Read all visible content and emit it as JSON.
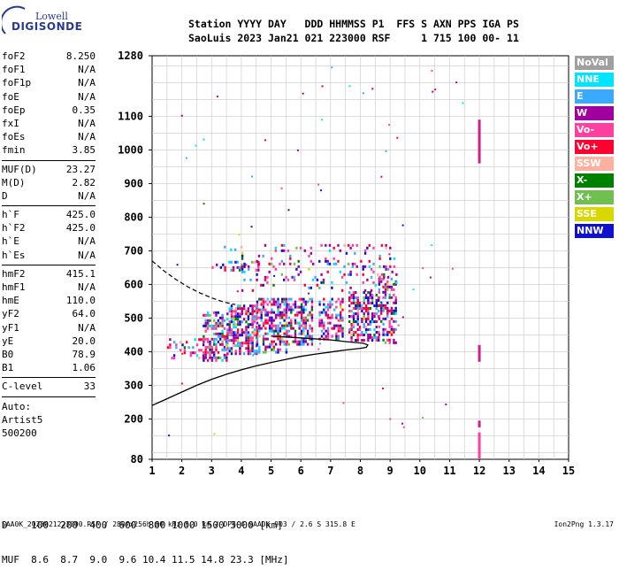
{
  "logo": {
    "lowell": "Lowell",
    "digisonde": "DIGISONDE"
  },
  "header": {
    "line1": "Station YYYY DAY   DDD HHMMSS P1  FFS S AXN PPS IGA PS",
    "line2": "SaoLuis 2023 Jan21 021 223000 RSF     1 715 100 00- 11"
  },
  "params_groups": [
    [
      [
        "foF2",
        "8.250"
      ],
      [
        "foF1",
        "N/A"
      ],
      [
        "foF1p",
        "N/A"
      ],
      [
        "foE",
        "N/A"
      ],
      [
        "foEp",
        "0.35"
      ],
      [
        "fxI",
        "N/A"
      ],
      [
        "foEs",
        "N/A"
      ],
      [
        "fmin",
        "3.85"
      ]
    ],
    [
      [
        "MUF(D)",
        "23.27"
      ],
      [
        "M(D)",
        "2.82"
      ],
      [
        "D",
        "N/A"
      ]
    ],
    [
      [
        "h`F",
        "425.0"
      ],
      [
        "h`F2",
        "425.0"
      ],
      [
        "h`E",
        "N/A"
      ],
      [
        "h`Es",
        "N/A"
      ]
    ],
    [
      [
        "hmF2",
        "415.1"
      ],
      [
        "hmF1",
        "N/A"
      ],
      [
        "hmE",
        "110.0"
      ],
      [
        "yF2",
        "64.0"
      ],
      [
        "yF1",
        "N/A"
      ],
      [
        "yE",
        "20.0"
      ],
      [
        "B0",
        "78.9"
      ],
      [
        "B1",
        "1.06"
      ]
    ],
    [
      [
        "C-level",
        "33"
      ]
    ]
  ],
  "notes": [
    "Auto:",
    "Artist5",
    "500200"
  ],
  "legend": [
    {
      "label": "NoVal",
      "color": "#a0a0a0"
    },
    {
      "label": "NNE",
      "color": "#00e5ff"
    },
    {
      "label": "E",
      "color": "#3aaaff"
    },
    {
      "label": "W",
      "color": "#a000a0"
    },
    {
      "label": "Vo-",
      "color": "#ff40a0"
    },
    {
      "label": "Vo+",
      "color": "#ff0030"
    },
    {
      "label": "SSW",
      "color": "#ffb0a0"
    },
    {
      "label": "X-",
      "color": "#008000"
    },
    {
      "label": "X+",
      "color": "#70c050"
    },
    {
      "label": "SSE",
      "color": "#d8d800"
    },
    {
      "label": "NNW",
      "color": "#1010d0"
    }
  ],
  "bottom": {
    "d_line": "D    100  200  400  600  800 1000 1500 3000 [km]",
    "muf_line": "MUF  8.6  8.7  9.0  9.6 10.4 11.5 14.8 23.3 [MHz]"
  },
  "footer": {
    "left": "SAA0K_2023021223000.RSF / 280fx256h 50 kHz 5.0 km / DPS-4 SAA0K 903 / 2.6 S 315.8 E",
    "right": "Ion2Png 1.3.17"
  },
  "chart_data": {
    "type": "scatter",
    "title": "",
    "xlabel": "",
    "ylabel": "",
    "x_ticks": [
      1,
      2,
      3,
      4,
      5,
      6,
      7,
      8,
      9,
      10,
      11,
      12,
      13,
      14,
      15
    ],
    "y_ticks": [
      80,
      200,
      300,
      400,
      500,
      600,
      700,
      800,
      900,
      1000,
      1100,
      1280
    ],
    "xlim": [
      1,
      15
    ],
    "ylim": [
      80,
      1280
    ],
    "grid": true,
    "echo_clusters": [
      {
        "x": [
          2.7,
          3.5
        ],
        "y": [
          370,
          520
        ],
        "density": 0.55
      },
      {
        "x": [
          3.5,
          4.5
        ],
        "y": [
          390,
          540
        ],
        "density": 0.6
      },
      {
        "x": [
          4.5,
          5.5
        ],
        "y": [
          400,
          560
        ],
        "density": 0.55
      },
      {
        "x": [
          5.5,
          6.4
        ],
        "y": [
          420,
          560
        ],
        "density": 0.5
      },
      {
        "x": [
          6.6,
          7.4
        ],
        "y": [
          440,
          560
        ],
        "density": 0.5
      },
      {
        "x": [
          7.6,
          8.6
        ],
        "y": [
          430,
          580
        ],
        "density": 0.55
      },
      {
        "x": [
          8.6,
          9.2
        ],
        "y": [
          430,
          620
        ],
        "density": 0.45
      },
      {
        "x": [
          1.5,
          2.7
        ],
        "y": [
          380,
          440
        ],
        "density": 0.25
      },
      {
        "x": [
          3.0,
          4.6
        ],
        "y": [
          640,
          670
        ],
        "density": 0.35
      },
      {
        "x": [
          3.2,
          4.0
        ],
        "y": [
          700,
          715
        ],
        "density": 0.3
      },
      {
        "x": [
          4.0,
          9.2
        ],
        "y": [
          580,
          720
        ],
        "density": 0.12
      }
    ],
    "vertical_bars": [
      {
        "x": 12.0,
        "y": [
          960,
          1090
        ],
        "color": "#cc2288"
      },
      {
        "x": 12.0,
        "y": [
          370,
          420
        ],
        "color": "#cc2288"
      },
      {
        "x": 12.0,
        "y": [
          80,
          160
        ],
        "color": "#ff40a0"
      },
      {
        "x": 12.0,
        "y": [
          175,
          195
        ],
        "color": "#cc2288"
      }
    ],
    "profile_solid": [
      [
        1,
        240
      ],
      [
        1.5,
        260
      ],
      [
        2,
        280
      ],
      [
        2.5,
        300
      ],
      [
        3,
        318
      ],
      [
        3.5,
        333
      ],
      [
        4,
        346
      ],
      [
        4.5,
        358
      ],
      [
        5,
        368
      ],
      [
        5.5,
        377
      ],
      [
        6,
        386
      ],
      [
        6.5,
        393
      ],
      [
        7,
        399
      ],
      [
        7.5,
        405
      ],
      [
        8,
        410
      ],
      [
        8.2,
        413
      ],
      [
        8.25,
        420
      ],
      [
        8.1,
        425
      ],
      [
        7.5,
        430
      ],
      [
        7,
        435
      ],
      [
        6,
        441
      ],
      [
        5,
        446
      ]
    ],
    "profile_dashed": [
      [
        1,
        670
      ],
      [
        1.4,
        640
      ],
      [
        1.8,
        615
      ],
      [
        2.2,
        593
      ],
      [
        2.6,
        575
      ],
      [
        3,
        560
      ],
      [
        3.4,
        548
      ],
      [
        3.8,
        540
      ]
    ]
  }
}
